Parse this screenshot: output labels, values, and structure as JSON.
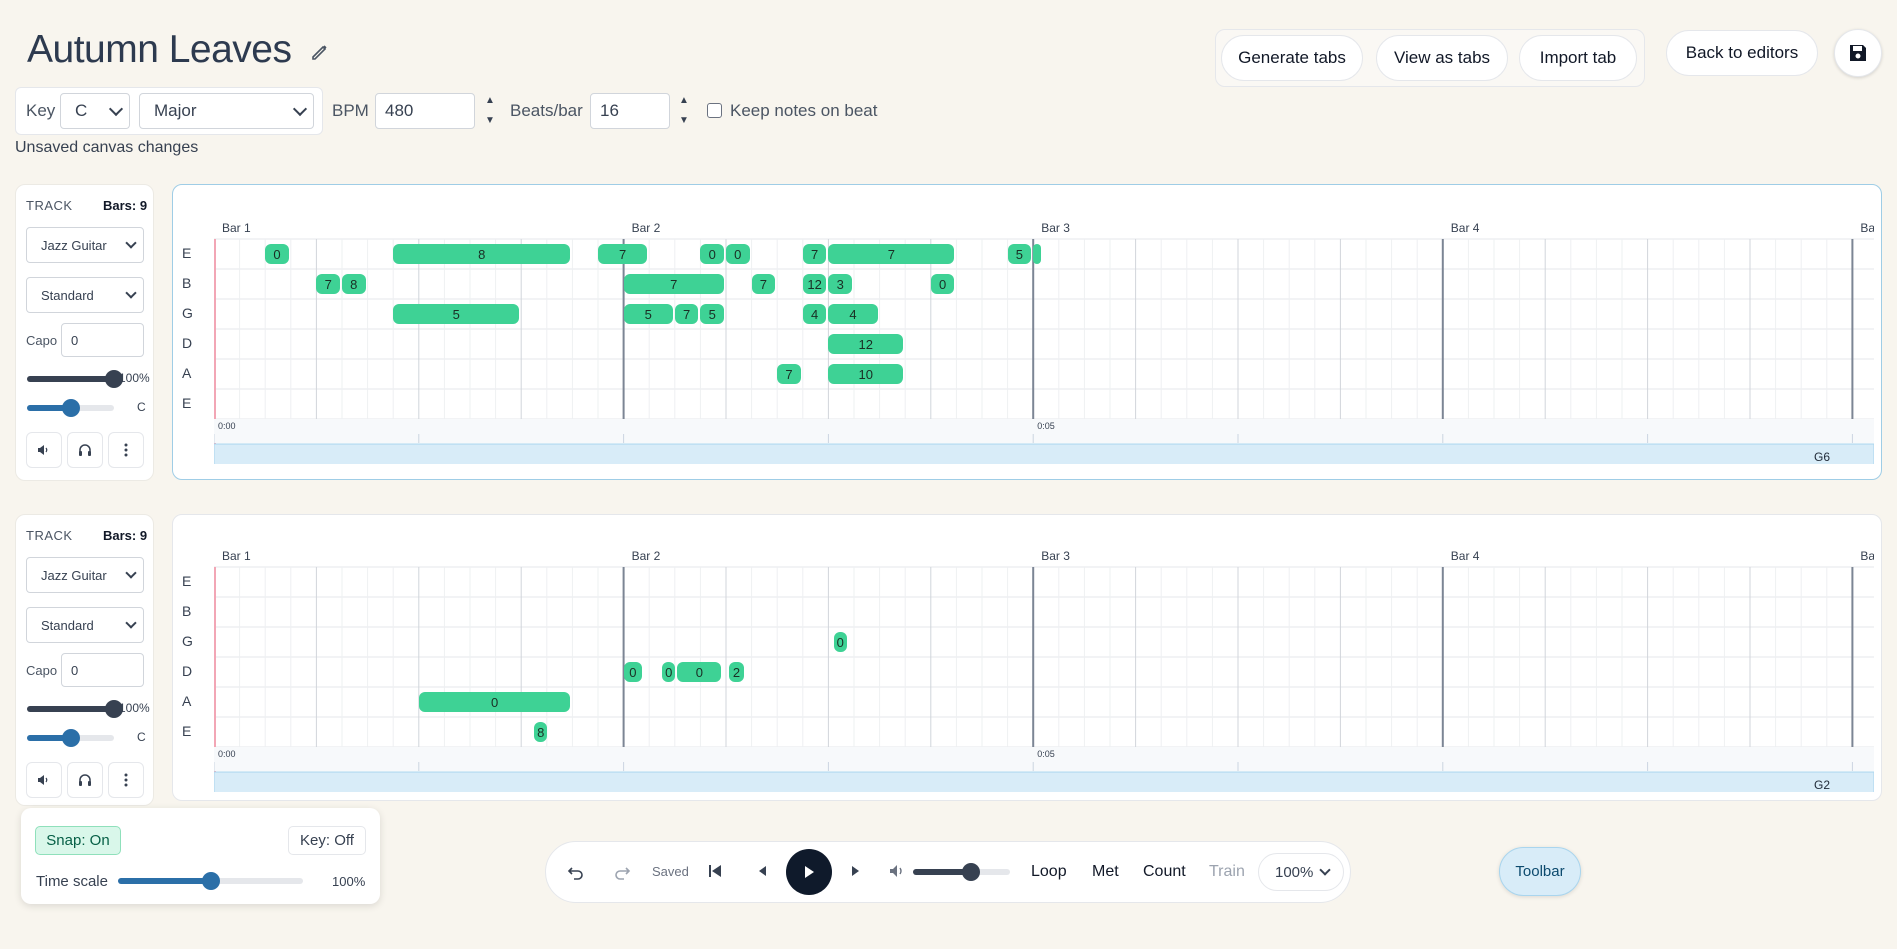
{
  "page_title": "Autumn Leaves",
  "header_buttons": {
    "generate": "Generate tabs",
    "view": "View as tabs",
    "import": "Import tab",
    "back": "Back to editors"
  },
  "key_section": {
    "key_label": "Key",
    "key_value": "C",
    "scale_value": "Major",
    "bpm_label": "BPM",
    "bpm_value": "480",
    "beats_label": "Beats/bar",
    "beats_value": "16",
    "keep_beat_label": "Keep notes on beat"
  },
  "status_text": "Unsaved canvas changes",
  "string_labels": [
    "E",
    "B",
    "G",
    "D",
    "A",
    "E"
  ],
  "bar_labels": [
    "Bar 1",
    "Bar 2",
    "Bar 3",
    "Bar 4",
    "Ba"
  ],
  "time_labels": [
    "0:00",
    "0:05"
  ],
  "tracks": [
    {
      "track_label": "TRACK",
      "bars": "Bars: 9",
      "instrument": "Jazz Guitar",
      "tuning": "Standard",
      "capo_label": "Capo",
      "capo_value": "0",
      "volume_pct": "100%",
      "volume_level": 1.0,
      "pan_label": "C",
      "pan_level": 0.5,
      "lane_label": "G6",
      "notes": [
        {
          "s": 0,
          "start": 1,
          "len": 0.5,
          "fret": "0"
        },
        {
          "s": 0,
          "start": 3.5,
          "len": 3.5,
          "fret": "8"
        },
        {
          "s": 0,
          "start": 7.5,
          "len": 1,
          "fret": "7"
        },
        {
          "s": 0,
          "start": 9.5,
          "len": 0.5,
          "fret": "0"
        },
        {
          "s": 0,
          "start": 10,
          "len": 0.5,
          "fret": "0"
        },
        {
          "s": 0,
          "start": 11.5,
          "len": 0.5,
          "fret": "7"
        },
        {
          "s": 0,
          "start": 12,
          "len": 2.5,
          "fret": "7"
        },
        {
          "s": 0,
          "start": 15.5,
          "len": 0.5,
          "fret": "5"
        },
        {
          "s": 0,
          "start": 16,
          "len": 0.2,
          "fret": ""
        },
        {
          "s": 1,
          "start": 2,
          "len": 0.5,
          "fret": "7"
        },
        {
          "s": 1,
          "start": 2.5,
          "len": 0.5,
          "fret": "8"
        },
        {
          "s": 1,
          "start": 8,
          "len": 2,
          "fret": "7"
        },
        {
          "s": 1,
          "start": 10.5,
          "len": 0.5,
          "fret": "7"
        },
        {
          "s": 1,
          "start": 11.5,
          "len": 0.5,
          "fret": "12"
        },
        {
          "s": 1,
          "start": 12,
          "len": 0.5,
          "fret": "3"
        },
        {
          "s": 1,
          "start": 14,
          "len": 0.5,
          "fret": "0"
        },
        {
          "s": 2,
          "start": 3.5,
          "len": 2.5,
          "fret": "5"
        },
        {
          "s": 2,
          "start": 8,
          "len": 1,
          "fret": "5"
        },
        {
          "s": 2,
          "start": 9,
          "len": 0.5,
          "fret": "7"
        },
        {
          "s": 2,
          "start": 9.5,
          "len": 0.5,
          "fret": "5"
        },
        {
          "s": 2,
          "start": 11.5,
          "len": 0.5,
          "fret": "4"
        },
        {
          "s": 2,
          "start": 12,
          "len": 1,
          "fret": "4"
        },
        {
          "s": 3,
          "start": 12,
          "len": 1.5,
          "fret": "12"
        },
        {
          "s": 4,
          "start": 11,
          "len": 0.5,
          "fret": "7"
        },
        {
          "s": 4,
          "start": 12,
          "len": 1.5,
          "fret": "10"
        }
      ]
    },
    {
      "track_label": "TRACK",
      "bars": "Bars: 9",
      "instrument": "Jazz Guitar",
      "tuning": "Standard",
      "capo_label": "Capo",
      "capo_value": "0",
      "volume_pct": "100%",
      "volume_level": 1.0,
      "pan_label": "C",
      "pan_level": 0.5,
      "lane_label": "G2",
      "notes": [
        {
          "s": 2,
          "start": 12.1,
          "len": 0.3,
          "fret": "0"
        },
        {
          "s": 3,
          "start": 8,
          "len": 0.4,
          "fret": "0"
        },
        {
          "s": 3,
          "start": 8.75,
          "len": 0.3,
          "fret": "0"
        },
        {
          "s": 3,
          "start": 9.05,
          "len": 0.9,
          "fret": "0"
        },
        {
          "s": 3,
          "start": 10.05,
          "len": 0.35,
          "fret": "2"
        },
        {
          "s": 4,
          "start": 4,
          "len": 3,
          "fret": "0"
        },
        {
          "s": 5,
          "start": 6.25,
          "len": 0.3,
          "fret": "8"
        }
      ]
    }
  ],
  "snap_panel": {
    "snap": "Snap: On",
    "key": "Key: Off",
    "time_scale_label": "Time scale",
    "time_scale_value": "100%",
    "time_scale_level": 0.5
  },
  "transport": {
    "saved": "Saved",
    "loop": "Loop",
    "met": "Met",
    "count": "Count",
    "train": "Train",
    "zoom": "100%",
    "volume_level": 0.6
  },
  "toolbar_button": "Toolbar"
}
